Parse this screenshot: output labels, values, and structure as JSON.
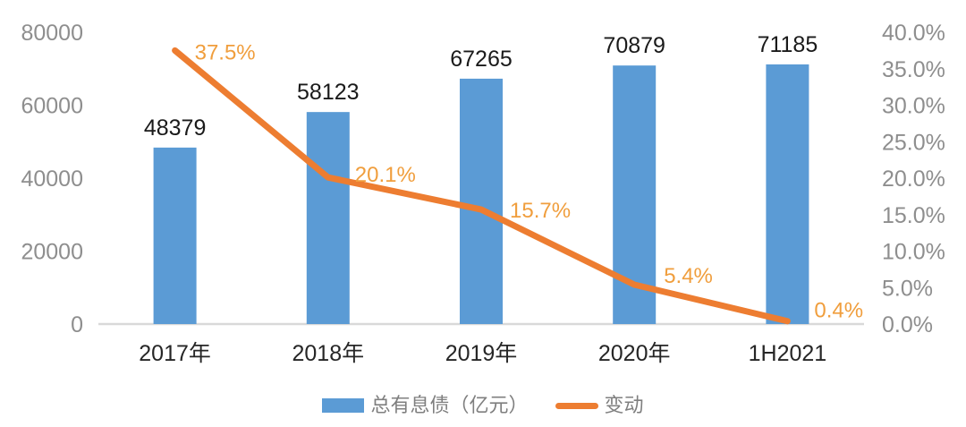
{
  "chart_data": {
    "type": "combo-bar-line",
    "title": "",
    "categories": [
      "2017年",
      "2018年",
      "2019年",
      "2020年",
      "1H2021"
    ],
    "series": [
      {
        "name": "总有息债（亿元）",
        "chart_type": "bar",
        "axis": "left",
        "color": "#5B9BD5",
        "values": [
          48379,
          58123,
          67265,
          70879,
          71185
        ],
        "data_labels": [
          "48379",
          "58123",
          "67265",
          "70879",
          "71185"
        ]
      },
      {
        "name": "变动",
        "chart_type": "line",
        "axis": "right",
        "color": "#ED7D31",
        "values": [
          37.5,
          20.1,
          15.7,
          5.4,
          0.4
        ],
        "data_labels": [
          "37.5%",
          "20.1%",
          "15.7%",
          "5.4%",
          "0.4%"
        ]
      }
    ],
    "left_axis": {
      "min": 0,
      "max": 80000,
      "tick_values": [
        0,
        20000,
        40000,
        60000,
        80000
      ],
      "tick_labels": [
        "0",
        "20000",
        "40000",
        "60000",
        "80000"
      ]
    },
    "right_axis": {
      "min": 0,
      "max": 40,
      "tick_values": [
        0,
        5,
        10,
        15,
        20,
        25,
        30,
        35,
        40
      ],
      "tick_labels": [
        "0.0%",
        "5.0%",
        "10.0%",
        "15.0%",
        "20.0%",
        "25.0%",
        "30.0%",
        "35.0%",
        "40.0%"
      ]
    },
    "grid": false,
    "legend_position": "bottom"
  },
  "legend": {
    "items": [
      {
        "label": "总有息债（亿元）",
        "marker": "rect",
        "color": "#5B9BD5"
      },
      {
        "label": "变动",
        "marker": "line",
        "color": "#ED7D31"
      }
    ]
  },
  "colors": {
    "background": "#FFFFFF",
    "axis_line": "#D9D9D9",
    "axis_tick_label": "#8E8E8E",
    "category_label": "#262626",
    "bar_value_label": "#1A1A1A",
    "line_value_label": "#F09E3D"
  }
}
